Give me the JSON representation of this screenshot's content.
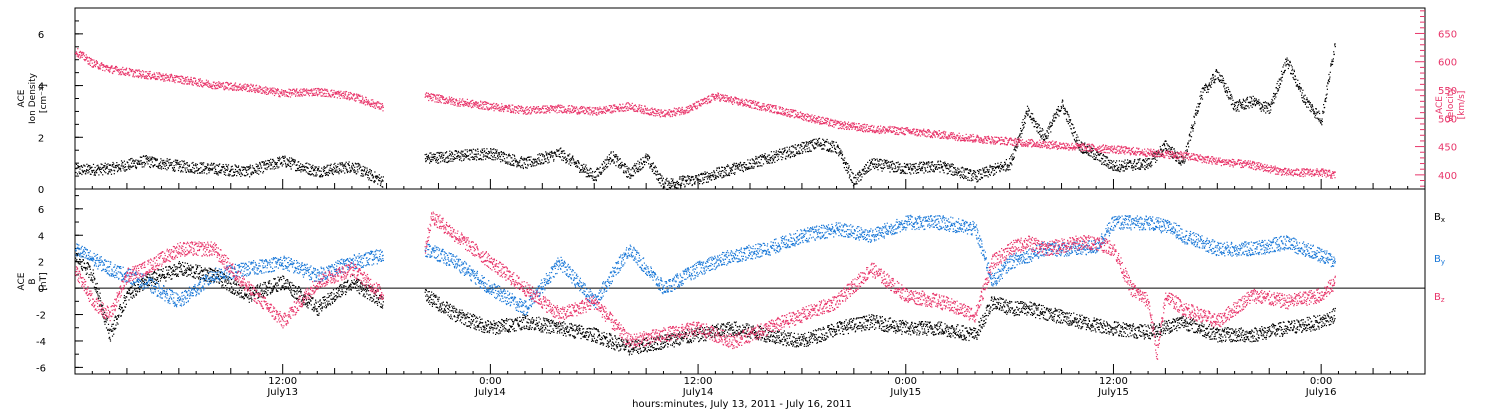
{
  "figure": {
    "xlabel": "hours:minutes, July 13, 2011 - July 16, 2011",
    "time_ticks": [
      {
        "hour": 12,
        "time": "12:00",
        "date": "July13"
      },
      {
        "hour": 24,
        "time": "0:00",
        "date": "July14"
      },
      {
        "hour": 36,
        "time": "12:00",
        "date": "July14"
      },
      {
        "hour": 48,
        "time": "0:00",
        "date": "July15"
      },
      {
        "hour": 60,
        "time": "12:00",
        "date": "July15"
      },
      {
        "hour": 72,
        "time": "0:00",
        "date": "July16"
      }
    ],
    "colors": {
      "black": "#000000",
      "pink": "#e8356a",
      "blue": "#1a78d8"
    }
  },
  "chart_data": [
    {
      "type": "scatter",
      "panel": "top",
      "ylabel_lines": [
        "ACE",
        "Ion Density",
        "[cm⁻³]"
      ],
      "y2label_lines": [
        "ACE",
        "Velocity",
        "[km/s]"
      ],
      "xlim": [
        0,
        78
      ],
      "ylim": [
        0,
        7
      ],
      "y2lim": [
        375,
        695
      ],
      "yticks": [
        0,
        2,
        4,
        6
      ],
      "y2ticks": [
        400,
        450,
        500,
        550,
        600,
        650
      ],
      "series": [
        {
          "name": "Ion Density",
          "axis": "left",
          "color": "#000000",
          "segments": [
            {
              "x": [
                0,
                2,
                4,
                6,
                8,
                10,
                12,
                14,
                16,
                17.8
              ],
              "y": [
                0.75,
                0.8,
                1.1,
                0.9,
                0.8,
                0.7,
                1.1,
                0.7,
                0.9,
                0.3
              ]
            },
            {
              "x": [
                20.2,
                22,
                24,
                26,
                28,
                30,
                31,
                32,
                33,
                34,
                36,
                38,
                40,
                42,
                43,
                44,
                45,
                46,
                48,
                50,
                52,
                54,
                55,
                56,
                57,
                58,
                60,
                62,
                63,
                64,
                65,
                66,
                67,
                68,
                69,
                70,
                71,
                72,
                72.8
              ],
              "y": [
                1.2,
                1.3,
                1.4,
                1.0,
                1.4,
                0.5,
                1.3,
                0.6,
                1.2,
                0.2,
                0.4,
                0.8,
                1.2,
                1.6,
                1.8,
                1.6,
                0.3,
                1.0,
                0.8,
                0.9,
                0.5,
                1.0,
                3.0,
                2.0,
                3.3,
                1.7,
                0.9,
                1.0,
                1.7,
                1.0,
                3.6,
                4.5,
                3.2,
                3.4,
                3.1,
                5.0,
                3.5,
                2.7,
                5.7
              ]
            }
          ]
        },
        {
          "name": "Velocity",
          "axis": "right",
          "color": "#e8356a",
          "segments": [
            {
              "x": [
                0,
                1,
                2,
                4,
                6,
                8,
                10,
                12,
                14,
                16,
                17.8
              ],
              "y": [
                620,
                598,
                588,
                578,
                570,
                560,
                555,
                545,
                548,
                540,
                520
              ]
            },
            {
              "x": [
                20.2,
                22,
                24,
                26,
                28,
                30,
                32,
                34,
                35.5,
                37,
                38,
                40,
                42,
                44,
                46,
                48,
                50,
                52,
                54,
                56,
                58,
                60,
                62,
                64,
                66,
                68,
                70,
                72,
                72.8
              ],
              "y": [
                540,
                530,
                522,
                515,
                518,
                513,
                522,
                508,
                518,
                540,
                532,
                520,
                505,
                490,
                482,
                478,
                472,
                465,
                460,
                455,
                450,
                446,
                440,
                435,
                425,
                418,
                405,
                405,
                400
              ]
            }
          ]
        }
      ]
    },
    {
      "type": "scatter",
      "panel": "bottom",
      "ylabel_lines": [
        "ACE",
        "B",
        "[nT]"
      ],
      "xlim": [
        0,
        78
      ],
      "ylim": [
        -6.5,
        7.5
      ],
      "yticks": [
        -6,
        -4,
        -2,
        0,
        2,
        4,
        6
      ],
      "legend": {
        "placement": "right",
        "entries": [
          "Bx",
          "By",
          "Bz"
        ]
      },
      "series": [
        {
          "name": "Bx",
          "color": "#000000",
          "segments": [
            {
              "x": [
                0,
                1,
                2,
                3,
                4,
                6,
                8,
                10,
                12,
                14,
                16,
                17.8
              ],
              "y": [
                2.5,
                1.0,
                -3.5,
                -0.5,
                0.5,
                1.5,
                1.0,
                -0.5,
                0.5,
                -1.5,
                0.5,
                -1.0
              ]
            },
            {
              "x": [
                20.2,
                22,
                24,
                26,
                28,
                30,
                32,
                34,
                36,
                38,
                40,
                42,
                44,
                46,
                48,
                50,
                52,
                53,
                54,
                55,
                56,
                58,
                60,
                62,
                64,
                66,
                68,
                70,
                72,
                72.8
              ],
              "y": [
                -0.5,
                -2.0,
                -3.0,
                -2.5,
                -3.0,
                -3.5,
                -4.5,
                -4.0,
                -3.5,
                -3.0,
                -3.5,
                -4.0,
                -3.0,
                -2.5,
                -3.0,
                -3.0,
                -3.5,
                -1.0,
                -1.5,
                -1.5,
                -1.8,
                -2.5,
                -3.0,
                -3.3,
                -2.5,
                -3.5,
                -3.5,
                -3.0,
                -2.5,
                -2.0
              ]
            }
          ]
        },
        {
          "name": "By",
          "color": "#1a78d8",
          "segments": [
            {
              "x": [
                0,
                2,
                4,
                6,
                8,
                10,
                12,
                14,
                16,
                17.8
              ],
              "y": [
                3.0,
                1.5,
                0.5,
                -1.0,
                1.0,
                1.5,
                2.0,
                1.0,
                2.0,
                2.5
              ]
            },
            {
              "x": [
                20.2,
                22,
                24,
                26,
                28,
                30,
                32,
                34,
                36,
                38,
                40,
                42,
                44,
                46,
                48,
                50,
                52,
                53,
                54,
                55,
                56,
                58,
                59,
                60,
                62,
                63.5,
                64,
                66,
                68,
                70,
                72,
                72.8
              ],
              "y": [
                3.0,
                2.0,
                0.0,
                -1.5,
                2.0,
                -1.0,
                3.0,
                0.0,
                1.5,
                2.5,
                3.0,
                4.0,
                4.5,
                4.0,
                5.0,
                5.0,
                4.5,
                0.5,
                2.0,
                2.5,
                3.0,
                3.0,
                3.2,
                5.0,
                5.0,
                4.5,
                4.0,
                3.0,
                3.0,
                3.5,
                2.5,
                2.0
              ]
            }
          ]
        },
        {
          "name": "Bz",
          "color": "#e8356a",
          "segments": [
            {
              "x": [
                0,
                1,
                2,
                3,
                4,
                6,
                8,
                10,
                12,
                14,
                16,
                17.8
              ],
              "y": [
                1.5,
                -1.0,
                -2.0,
                1.0,
                1.5,
                3.0,
                3.0,
                0.0,
                -2.5,
                0.5,
                1.5,
                -0.5
              ]
            },
            {
              "x": [
                20.2,
                20.6,
                22,
                24,
                26,
                28,
                30,
                32,
                34,
                36,
                38,
                40,
                42,
                44,
                46,
                48,
                50,
                52,
                53,
                54,
                55,
                56,
                58,
                59,
                60,
                61,
                62,
                62.5,
                63,
                64,
                66,
                68,
                70,
                72,
                72.8
              ],
              "y": [
                3.0,
                5.5,
                4.0,
                2.0,
                0.0,
                -2.0,
                -1.0,
                -4.0,
                -3.5,
                -3.0,
                -4.0,
                -3.0,
                -2.0,
                -1.0,
                1.5,
                -0.5,
                -1.0,
                -2.0,
                2.0,
                3.0,
                3.5,
                3.0,
                3.5,
                3.5,
                3.0,
                0.0,
                -1.0,
                -5.0,
                -0.5,
                -1.5,
                -2.5,
                -0.5,
                -1.0,
                -0.5,
                0.5
              ]
            }
          ]
        }
      ]
    }
  ]
}
